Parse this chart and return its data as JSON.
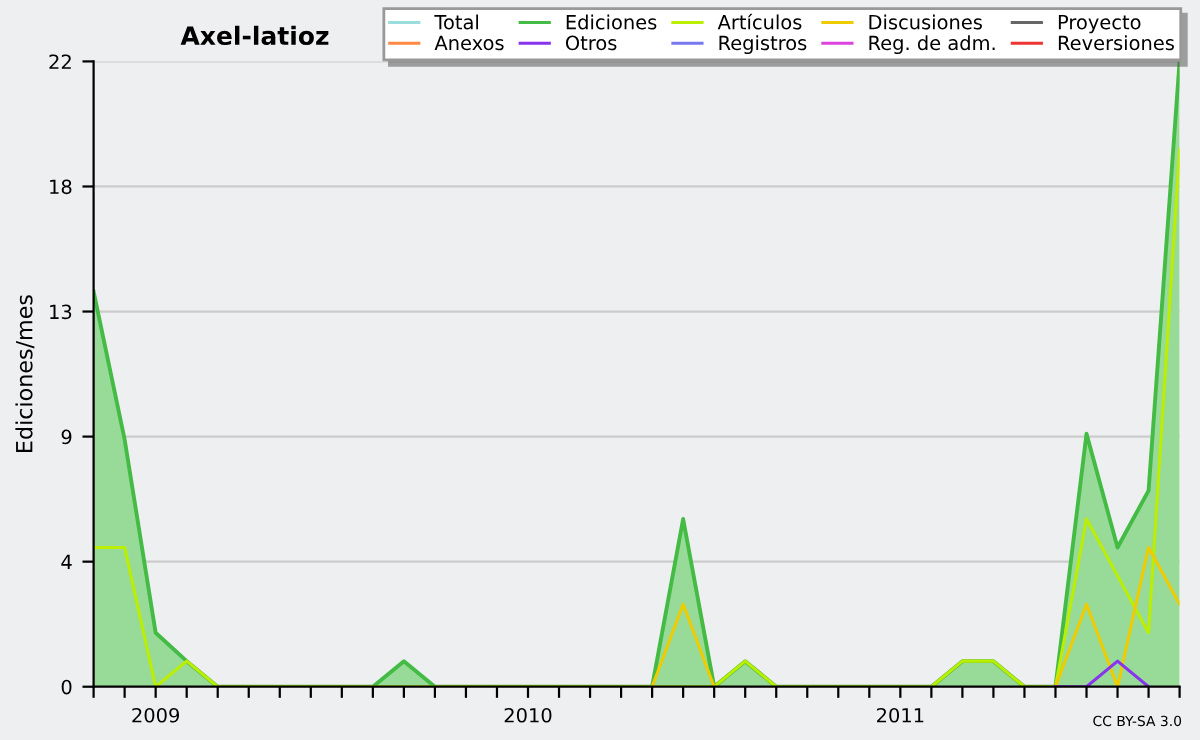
{
  "chart_data": {
    "type": "line",
    "title": "Axel-latioz",
    "ylabel": "Ediciones/mes",
    "x": [
      "2008-11",
      "2008-12",
      "2009-01",
      "2009-02",
      "2009-03",
      "2009-04",
      "2009-05",
      "2009-06",
      "2009-07",
      "2009-08",
      "2009-09",
      "2009-10",
      "2009-11",
      "2009-12",
      "2010-01",
      "2010-02",
      "2010-03",
      "2010-04",
      "2010-05",
      "2010-06",
      "2010-07",
      "2010-08",
      "2010-09",
      "2010-10",
      "2010-11",
      "2010-12",
      "2011-01",
      "2011-02",
      "2011-03",
      "2011-04",
      "2011-05",
      "2011-06",
      "2011-07",
      "2011-08",
      "2011-09",
      "2011-10"
    ],
    "series": [
      {
        "name": "Total",
        "color": "#99dddd",
        "values": [
          null,
          null,
          null,
          null,
          null,
          null,
          null,
          null,
          null,
          null,
          null,
          null,
          null,
          null,
          null,
          null,
          null,
          null,
          null,
          null,
          null,
          null,
          null,
          null,
          null,
          null,
          null,
          null,
          null,
          null,
          null,
          null,
          null,
          null,
          null,
          null
        ]
      },
      {
        "name": "Ediciones",
        "color": "#44bb44",
        "type": "area",
        "values": [
          13.9,
          8.7,
          1.9,
          0.9,
          0,
          0,
          0,
          0,
          0,
          0,
          0.9,
          0,
          0,
          0,
          0,
          0,
          0,
          0,
          0,
          5.9,
          0,
          0.9,
          0,
          0,
          0,
          0,
          0,
          0,
          0.9,
          0.9,
          0,
          0,
          8.9,
          4.9,
          6.9,
          22
        ]
      },
      {
        "name": "Artículos",
        "color": "#bbee00",
        "values": [
          4.9,
          4.9,
          0,
          0.9,
          0,
          0,
          0,
          0,
          0,
          0,
          0,
          0,
          0,
          0,
          0,
          0,
          0,
          0,
          0,
          0,
          0,
          0.9,
          0,
          0,
          0,
          0,
          0,
          0,
          0.9,
          0.9,
          0,
          0,
          5.9,
          3.9,
          1.9,
          18.9
        ]
      },
      {
        "name": "Discusiones",
        "color": "#eecc00",
        "values": [
          null,
          null,
          null,
          null,
          null,
          null,
          null,
          null,
          null,
          null,
          null,
          null,
          null,
          null,
          null,
          null,
          null,
          null,
          0,
          2.9,
          0,
          null,
          null,
          null,
          null,
          null,
          null,
          null,
          null,
          null,
          null,
          0,
          2.9,
          0,
          4.9,
          2.9
        ]
      },
      {
        "name": "Proyecto",
        "color": "#666666",
        "values": [
          null,
          null,
          null,
          null,
          null,
          null,
          null,
          null,
          null,
          null,
          null,
          null,
          null,
          null,
          null,
          null,
          null,
          null,
          null,
          null,
          null,
          null,
          null,
          null,
          null,
          null,
          null,
          null,
          null,
          null,
          null,
          null,
          null,
          null,
          null,
          null
        ]
      },
      {
        "name": "Anexos",
        "color": "#ff8844",
        "values": [
          null,
          null,
          null,
          null,
          null,
          null,
          null,
          null,
          null,
          null,
          null,
          null,
          null,
          null,
          null,
          null,
          null,
          null,
          null,
          null,
          null,
          null,
          null,
          null,
          null,
          null,
          null,
          null,
          null,
          null,
          null,
          null,
          null,
          null,
          null,
          null
        ]
      },
      {
        "name": "Otros",
        "color": "#8833ee",
        "values": [
          null,
          null,
          null,
          null,
          null,
          null,
          null,
          null,
          null,
          null,
          null,
          null,
          null,
          null,
          null,
          null,
          null,
          null,
          null,
          null,
          null,
          null,
          null,
          null,
          null,
          null,
          null,
          null,
          null,
          null,
          null,
          0,
          0,
          0.9,
          0,
          null
        ]
      },
      {
        "name": "Registros",
        "color": "#7777ee",
        "values": [
          null,
          null,
          null,
          null,
          null,
          null,
          null,
          null,
          null,
          null,
          null,
          null,
          null,
          null,
          null,
          null,
          null,
          null,
          null,
          null,
          null,
          null,
          null,
          null,
          null,
          null,
          null,
          null,
          null,
          null,
          null,
          null,
          null,
          null,
          null,
          null
        ]
      },
      {
        "name": "Reg. de adm.",
        "color": "#dd44dd",
        "values": [
          null,
          null,
          null,
          null,
          null,
          null,
          null,
          null,
          null,
          null,
          null,
          null,
          null,
          null,
          null,
          null,
          null,
          null,
          null,
          null,
          null,
          null,
          null,
          null,
          null,
          null,
          null,
          null,
          null,
          null,
          null,
          null,
          null,
          null,
          null,
          null
        ]
      },
      {
        "name": "Reversiones",
        "color": "#ee3333",
        "values": [
          null,
          null,
          null,
          null,
          null,
          null,
          null,
          null,
          null,
          null,
          null,
          null,
          null,
          null,
          null,
          null,
          null,
          null,
          null,
          null,
          null,
          null,
          null,
          null,
          null,
          null,
          null,
          null,
          null,
          null,
          null,
          null,
          null,
          null,
          null,
          null
        ]
      }
    ],
    "xlim": [
      "2008-11",
      "2011-10"
    ],
    "xticks": [
      {
        "value": "2008-11",
        "label": null
      },
      {
        "value": "2008-12",
        "label": null
      },
      {
        "value": "2009-01",
        "label": "2009"
      },
      {
        "value": "2009-02",
        "label": null
      },
      {
        "value": "2009-03",
        "label": null
      },
      {
        "value": "2009-04",
        "label": null
      },
      {
        "value": "2009-05",
        "label": null
      },
      {
        "value": "2009-06",
        "label": null
      },
      {
        "value": "2009-07",
        "label": null
      },
      {
        "value": "2009-08",
        "label": null
      },
      {
        "value": "2009-09",
        "label": null
      },
      {
        "value": "2009-10",
        "label": null
      },
      {
        "value": "2009-11",
        "label": null
      },
      {
        "value": "2009-12",
        "label": null
      },
      {
        "value": "2010-01",
        "label": "2010"
      },
      {
        "value": "2010-02",
        "label": null
      },
      {
        "value": "2010-03",
        "label": null
      },
      {
        "value": "2010-04",
        "label": null
      },
      {
        "value": "2010-05",
        "label": null
      },
      {
        "value": "2010-06",
        "label": null
      },
      {
        "value": "2010-07",
        "label": null
      },
      {
        "value": "2010-08",
        "label": null
      },
      {
        "value": "2010-09",
        "label": null
      },
      {
        "value": "2010-10",
        "label": null
      },
      {
        "value": "2010-11",
        "label": null
      },
      {
        "value": "2010-12",
        "label": null
      },
      {
        "value": "2011-01",
        "label": "2011"
      },
      {
        "value": "2011-02",
        "label": null
      },
      {
        "value": "2011-03",
        "label": null
      },
      {
        "value": "2011-04",
        "label": null
      },
      {
        "value": "2011-05",
        "label": null
      },
      {
        "value": "2011-06",
        "label": null
      },
      {
        "value": "2011-07",
        "label": null
      },
      {
        "value": "2011-08",
        "label": null
      },
      {
        "value": "2011-09",
        "label": null
      },
      {
        "value": "2011-10",
        "label": null
      }
    ],
    "ylim": [
      0,
      22
    ],
    "yticks": [
      0,
      {
        "value": 4.4,
        "label": "4"
      },
      {
        "value": 8.8,
        "label": "9"
      },
      {
        "value": 13.2,
        "label": "13"
      },
      {
        "value": 17.6,
        "label": "18"
      },
      22
    ],
    "grid": "y",
    "legend": "top right",
    "annotations": [
      "CC BY-SA 3.0"
    ]
  }
}
